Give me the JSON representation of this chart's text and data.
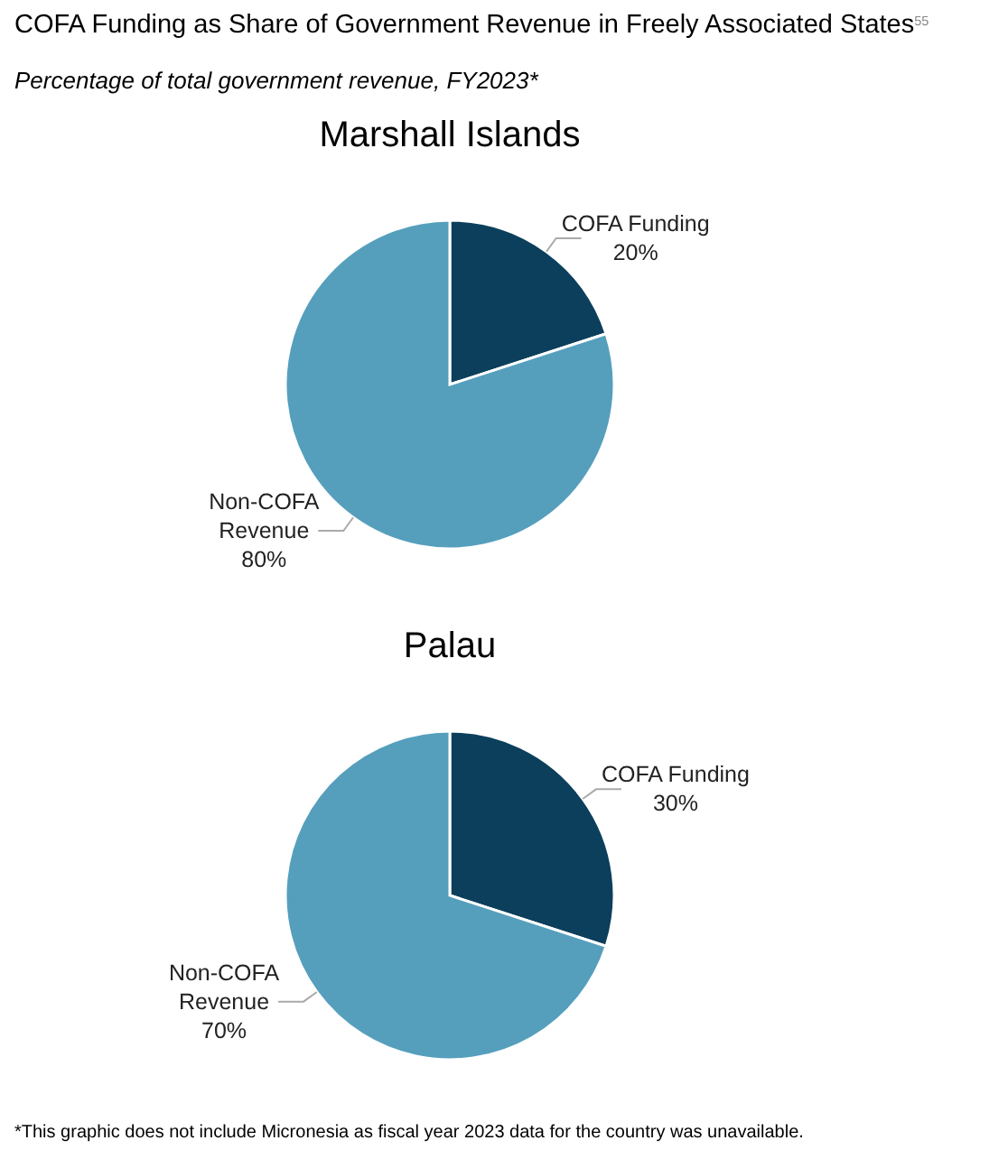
{
  "chart_data": [
    {
      "type": "pie",
      "title": "COFA Funding as Share of Government Revenue in Freely Associated States$^{55}$",
      "subtitle": "Percentage of total government revenue, FY2023*",
      "xlabel": "Marshall Islands",
      "categories": [
        "COFA Funding",
        "Non-COFA Revenue"
      ],
      "values": [
        20,
        80
      ],
      "colors": [
        "#0b3f5c",
        "#559fbd"
      ],
      "value_labels": [
        "20%",
        "80%"
      ]
    },
    {
      "type": "pie",
      "xlabel": "Palau",
      "categories": [
        "COFA Funding",
        "Non-COFA Revenue"
      ],
      "values": [
        30,
        70
      ],
      "colors": [
        "#0b3f5c",
        "#559fbd"
      ],
      "value_labels": [
        "30%",
        "70%"
      ],
      "annotations": [
        "*This graphic does not include Micronesia as fiscal year 2023 data for the country was unavailable."
      ]
    }
  ]
}
